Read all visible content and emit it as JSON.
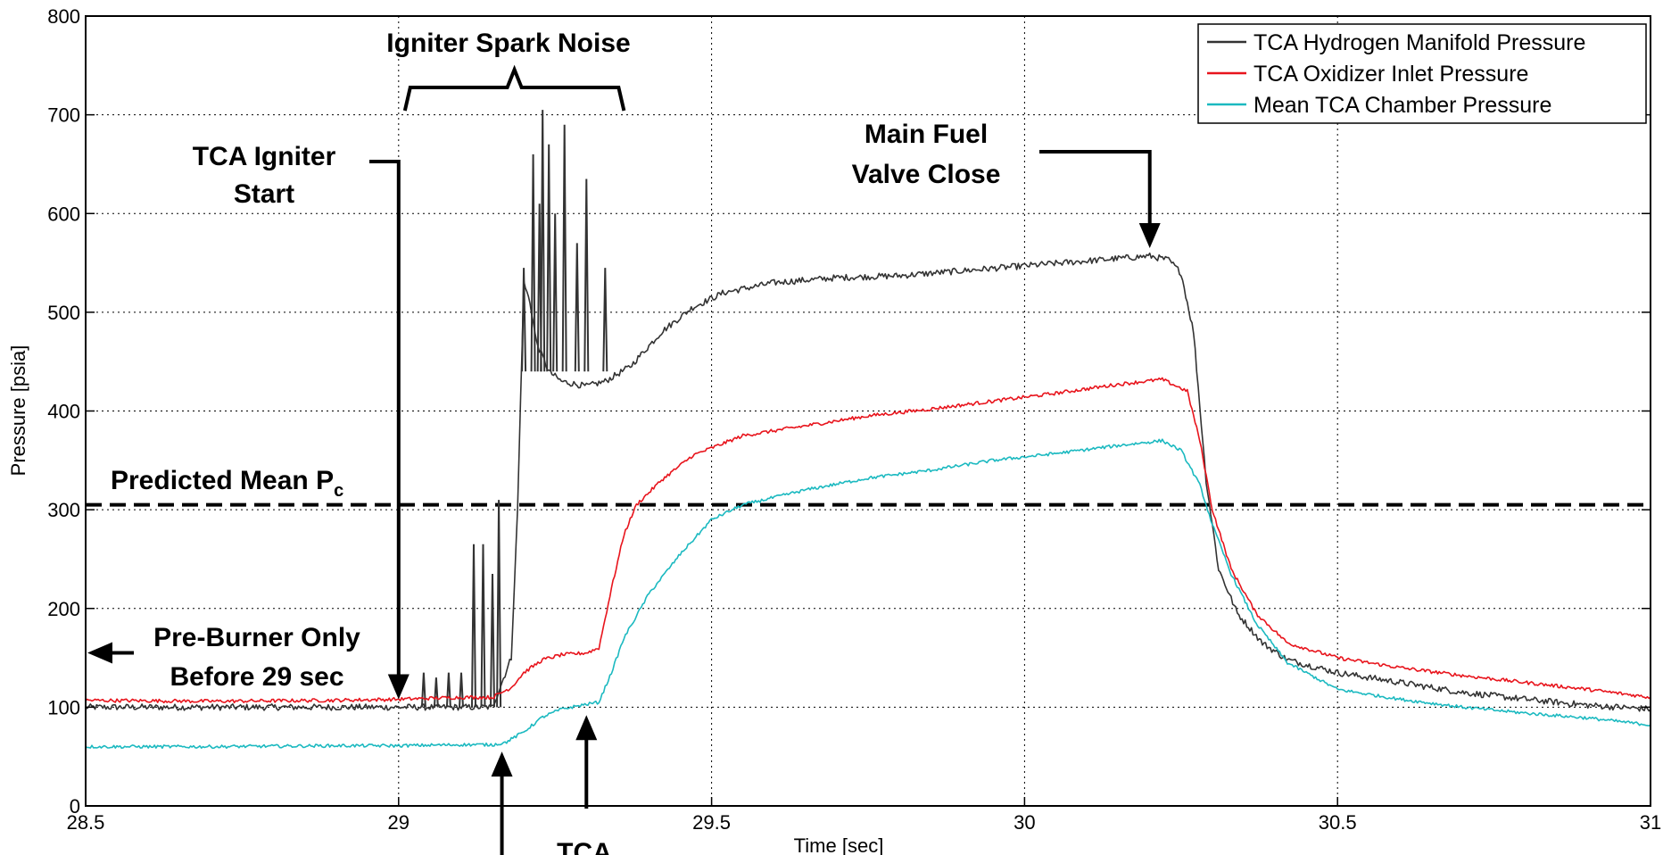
{
  "chart_data": {
    "type": "line",
    "xlabel": "Time [sec]",
    "ylabel": "Pressure [psia]",
    "xlim": [
      28.5,
      31
    ],
    "ylim": [
      0,
      800
    ],
    "xticks": [
      "28.5",
      "29",
      "29.5",
      "30",
      "30.5",
      "31"
    ],
    "yticks": [
      "0",
      "100",
      "200",
      "300",
      "400",
      "500",
      "600",
      "700",
      "800"
    ],
    "grid": true,
    "legend_position": "top-right",
    "series": [
      {
        "name": "TCA Hydrogen Manifold Pressure",
        "color": "#333333",
        "points": [
          [
            28.5,
            100
          ],
          [
            28.6,
            100
          ],
          [
            28.8,
            100
          ],
          [
            29.0,
            100
          ],
          [
            29.1,
            100
          ],
          [
            29.15,
            100
          ],
          [
            29.18,
            150
          ],
          [
            29.19,
            300
          ],
          [
            29.2,
            530
          ],
          [
            29.21,
            510
          ],
          [
            29.22,
            470
          ],
          [
            29.24,
            440
          ],
          [
            29.26,
            430
          ],
          [
            29.3,
            425
          ],
          [
            29.33,
            430
          ],
          [
            29.37,
            445
          ],
          [
            29.42,
            480
          ],
          [
            29.47,
            505
          ],
          [
            29.52,
            520
          ],
          [
            29.6,
            530
          ],
          [
            29.7,
            535
          ],
          [
            29.8,
            537
          ],
          [
            29.9,
            542
          ],
          [
            30.0,
            547
          ],
          [
            30.1,
            552
          ],
          [
            30.2,
            557
          ],
          [
            30.23,
            553
          ],
          [
            30.25,
            540
          ],
          [
            30.27,
            480
          ],
          [
            30.29,
            330
          ],
          [
            30.31,
            240
          ],
          [
            30.34,
            195
          ],
          [
            30.38,
            165
          ],
          [
            30.42,
            148
          ],
          [
            30.5,
            135
          ],
          [
            30.6,
            125
          ],
          [
            30.7,
            115
          ],
          [
            30.8,
            108
          ],
          [
            30.9,
            102
          ],
          [
            31.0,
            98
          ]
        ],
        "spikes": [
          [
            29.04,
            135
          ],
          [
            29.06,
            130
          ],
          [
            29.08,
            135
          ],
          [
            29.1,
            135
          ],
          [
            29.12,
            265
          ],
          [
            29.135,
            265
          ],
          [
            29.15,
            235
          ],
          [
            29.16,
            310
          ],
          [
            29.2,
            545
          ],
          [
            29.215,
            660
          ],
          [
            29.225,
            610
          ],
          [
            29.23,
            705
          ],
          [
            29.24,
            670
          ],
          [
            29.25,
            600
          ],
          [
            29.265,
            690
          ],
          [
            29.285,
            570
          ],
          [
            29.3,
            635
          ],
          [
            29.33,
            545
          ]
        ]
      },
      {
        "name": "TCA Oxidizer Inlet Pressure",
        "color": "#e8141c",
        "points": [
          [
            28.5,
            107
          ],
          [
            28.7,
            106
          ],
          [
            28.9,
            107
          ],
          [
            29.0,
            108
          ],
          [
            29.1,
            110
          ],
          [
            29.15,
            110
          ],
          [
            29.18,
            120
          ],
          [
            29.2,
            135
          ],
          [
            29.23,
            148
          ],
          [
            29.26,
            153
          ],
          [
            29.3,
            155
          ],
          [
            29.32,
            160
          ],
          [
            29.34,
            220
          ],
          [
            29.36,
            275
          ],
          [
            29.38,
            305
          ],
          [
            29.42,
            330
          ],
          [
            29.47,
            355
          ],
          [
            29.55,
            375
          ],
          [
            29.65,
            385
          ],
          [
            29.75,
            395
          ],
          [
            29.85,
            402
          ],
          [
            29.95,
            410
          ],
          [
            30.05,
            418
          ],
          [
            30.15,
            427
          ],
          [
            30.22,
            432
          ],
          [
            30.26,
            420
          ],
          [
            30.28,
            370
          ],
          [
            30.3,
            300
          ],
          [
            30.33,
            240
          ],
          [
            30.37,
            195
          ],
          [
            30.42,
            165
          ],
          [
            30.5,
            150
          ],
          [
            30.6,
            140
          ],
          [
            30.7,
            132
          ],
          [
            30.8,
            125
          ],
          [
            30.9,
            118
          ],
          [
            31.0,
            110
          ]
        ]
      },
      {
        "name": "Mean TCA Chamber Pressure",
        "color": "#1bb9c0",
        "points": [
          [
            28.5,
            60
          ],
          [
            28.7,
            60
          ],
          [
            28.9,
            61
          ],
          [
            29.0,
            61
          ],
          [
            29.1,
            62
          ],
          [
            29.15,
            62
          ],
          [
            29.17,
            64
          ],
          [
            29.2,
            75
          ],
          [
            29.23,
            90
          ],
          [
            29.26,
            98
          ],
          [
            29.3,
            103
          ],
          [
            29.32,
            105
          ],
          [
            29.34,
            135
          ],
          [
            29.36,
            170
          ],
          [
            29.4,
            215
          ],
          [
            29.45,
            255
          ],
          [
            29.5,
            290
          ],
          [
            29.55,
            305
          ],
          [
            29.65,
            320
          ],
          [
            29.75,
            332
          ],
          [
            29.85,
            340
          ],
          [
            29.95,
            350
          ],
          [
            30.05,
            357
          ],
          [
            30.15,
            365
          ],
          [
            30.22,
            370
          ],
          [
            30.25,
            360
          ],
          [
            30.28,
            325
          ],
          [
            30.3,
            285
          ],
          [
            30.33,
            235
          ],
          [
            30.37,
            185
          ],
          [
            30.42,
            145
          ],
          [
            30.5,
            118
          ],
          [
            30.6,
            108
          ],
          [
            30.7,
            100
          ],
          [
            30.8,
            94
          ],
          [
            30.9,
            89
          ],
          [
            31.0,
            82
          ]
        ]
      }
    ],
    "reference_lines": [
      {
        "label": "Predicted Mean P",
        "label_subscript": "c",
        "y": 305,
        "style": "dashed"
      }
    ],
    "annotations": {
      "spark_noise": {
        "text": "Igniter Spark Noise",
        "x_start": 29.01,
        "x_end": 29.36
      },
      "igniter_start": {
        "line1": "TCA Igniter",
        "line2": "Start",
        "target_x": 29.0,
        "target_y": 108
      },
      "main_fuel_valve": {
        "line1": "Main Fuel",
        "line2": "Valve Close",
        "target_x": 30.2,
        "target_y": 565
      },
      "pre_burner": {
        "line1": "Pre-Burner Only",
        "line2": "Before 29 sec",
        "target_x": 28.5,
        "target_y": 155
      },
      "tca_lower": {
        "text": "TCA",
        "target_x": 29.3,
        "target_y": 92
      },
      "arrow_lower_left": {
        "target_x": 29.165,
        "target_y": 55
      }
    }
  }
}
